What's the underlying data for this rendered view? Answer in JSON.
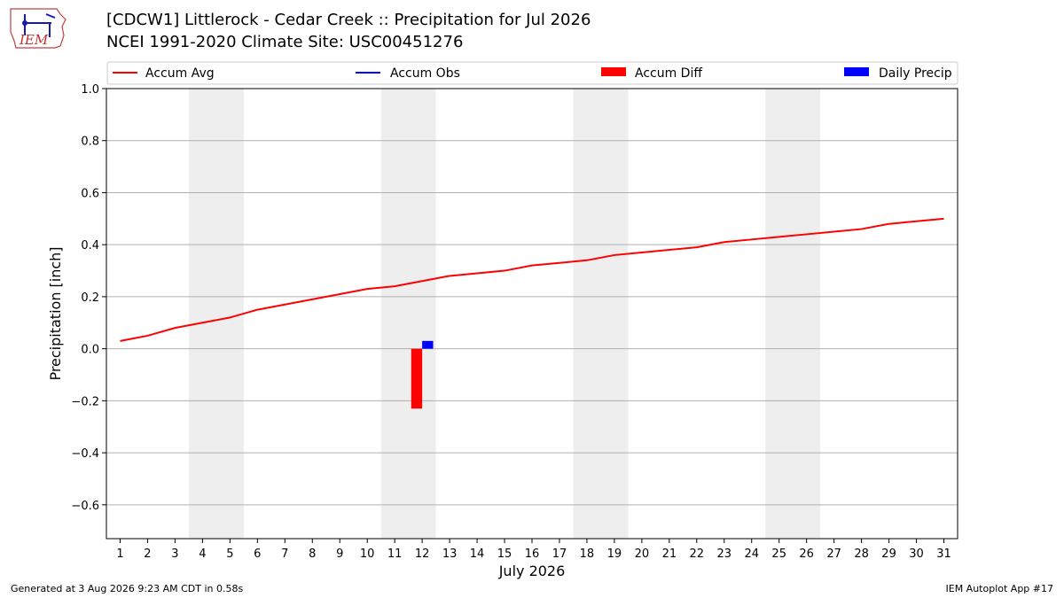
{
  "header": {
    "title_line1": "[CDCW1] Littlerock - Cedar Creek :: Precipitation for Jul 2026",
    "title_line2": "NCEI 1991-2020 Climate Site: USC00451276",
    "logo_text": "IEM"
  },
  "footer": {
    "generated": "Generated at 3 Aug 2026 9:23 AM CDT in 0.58s",
    "app": "IEM Autoplot App #17"
  },
  "colors": {
    "accum_avg": "#ff0000",
    "accum_obs": "#0000ff",
    "accum_diff": "#ff0000",
    "daily_precip": "#0000ff",
    "weekend_band": "#eeeeee",
    "grid": "#b0b0b0"
  },
  "chart_data": {
    "type": "line",
    "xlabel": "July 2026",
    "ylabel": "Precipitation [inch]",
    "ylim": [
      -0.73,
      1.0
    ],
    "yticks": [
      -0.6,
      -0.4,
      -0.2,
      0.0,
      0.2,
      0.4,
      0.6,
      0.8,
      1.0
    ],
    "ytick_labels": [
      "−0.6",
      "−0.4",
      "−0.2",
      "0.0",
      "0.2",
      "0.4",
      "0.6",
      "0.8",
      "1.0"
    ],
    "xlim": [
      0.5,
      31.5
    ],
    "x": [
      1,
      2,
      3,
      4,
      5,
      6,
      7,
      8,
      9,
      10,
      11,
      12,
      13,
      14,
      15,
      16,
      17,
      18,
      19,
      20,
      21,
      22,
      23,
      24,
      25,
      26,
      27,
      28,
      29,
      30,
      31
    ],
    "x_tick_labels": [
      "1",
      "2",
      "3",
      "4",
      "5",
      "6",
      "7",
      "8",
      "9",
      "10",
      "11",
      "12",
      "13",
      "14",
      "15",
      "16",
      "17",
      "18",
      "19",
      "20",
      "21",
      "22",
      "23",
      "24",
      "25",
      "26",
      "27",
      "28",
      "29",
      "30",
      "31"
    ],
    "weekend_bands": [
      [
        3.5,
        5.5
      ],
      [
        10.5,
        12.5
      ],
      [
        17.5,
        19.5
      ],
      [
        24.5,
        26.5
      ]
    ],
    "grid": "horizontal",
    "legend_position": "top",
    "legend": [
      "Accum Avg",
      "Accum Obs",
      "Accum Diff",
      "Daily Precip"
    ],
    "series": [
      {
        "name": "Accum Avg",
        "kind": "line",
        "x": [
          1,
          2,
          3,
          4,
          5,
          6,
          7,
          8,
          9,
          10,
          11,
          12,
          13,
          14,
          15,
          16,
          17,
          18,
          19,
          20,
          21,
          22,
          23,
          24,
          25,
          26,
          27,
          28,
          29,
          30,
          31
        ],
        "values": [
          0.03,
          0.05,
          0.08,
          0.1,
          0.12,
          0.15,
          0.17,
          0.19,
          0.21,
          0.23,
          0.24,
          0.26,
          0.28,
          0.29,
          0.3,
          0.32,
          0.33,
          0.34,
          0.36,
          0.37,
          0.38,
          0.39,
          0.41,
          0.42,
          0.43,
          0.44,
          0.45,
          0.46,
          0.48,
          0.49,
          0.5
        ]
      },
      {
        "name": "Accum Obs",
        "kind": "line",
        "x": [
          12
        ],
        "values": [
          0.03
        ]
      },
      {
        "name": "Accum Diff",
        "kind": "bar",
        "x": [
          12
        ],
        "values": [
          -0.23
        ]
      },
      {
        "name": "Daily Precip",
        "kind": "bar",
        "x": [
          12
        ],
        "values": [
          0.03
        ]
      }
    ]
  }
}
